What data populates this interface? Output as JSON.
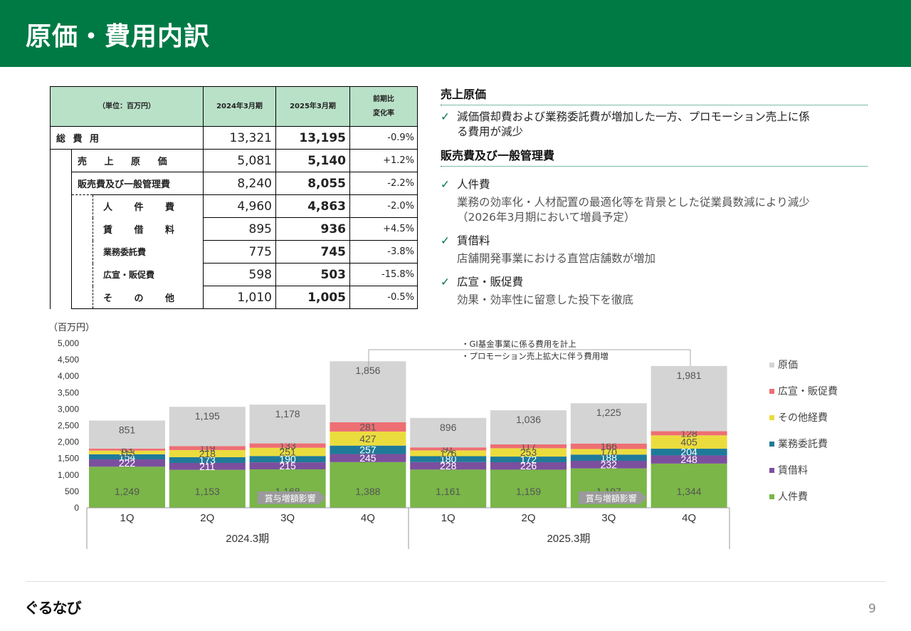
{
  "header": {
    "title": "原価・費用内訳"
  },
  "table": {
    "headers": {
      "unit": "（単位：百万円）",
      "fy2024": "2024年3月期",
      "fy2025": "2025年3月期",
      "change_l1": "前期比",
      "change_l2": "変化率"
    },
    "rows": [
      {
        "label": "総 費 用",
        "fy2024": "13,321",
        "fy2025": "13,195",
        "change": "-0.9%"
      },
      {
        "label": "売 上 原 価",
        "fy2024": "5,081",
        "fy2025": "5,140",
        "change": "+1.2%"
      },
      {
        "label": "販売費及び一般管理費",
        "fy2024": "8,240",
        "fy2025": "8,055",
        "change": "-2.2%"
      },
      {
        "label": "人 件 費",
        "fy2024": "4,960",
        "fy2025": "4,863",
        "change": "-2.0%"
      },
      {
        "label": "賃 借 料",
        "fy2024": "895",
        "fy2025": "936",
        "change": "+4.5%"
      },
      {
        "label": "業務委託費",
        "fy2024": "775",
        "fy2025": "745",
        "change": "-3.8%"
      },
      {
        "label": "広宣・販促費",
        "fy2024": "598",
        "fy2025": "503",
        "change": "-15.8%"
      },
      {
        "label": "そ の 他",
        "fy2024": "1,010",
        "fy2025": "1,005",
        "change": "-0.5%"
      }
    ]
  },
  "notes": {
    "section1_title": "売上原価",
    "section1_check": "✓",
    "section1_line1": "減価償却費および業務委託費が増加した一方、プロモーション売上に係",
    "section1_line2": "る費用が減少",
    "section2_title": "販売費及び一般管理費",
    "item1_title": "人件費",
    "item1_line1": "業務の効率化・人材配置の最適化等を背景とした従業員数減により減少",
    "item1_line2": "（2026年3月期において増員予定）",
    "item2_title": "賃借料",
    "item2_line1": "店舗開発事業における直営店舗数が増加",
    "item3_title": "広宣・販促費",
    "item3_line1": "効果・効率性に留意した投下を徹底"
  },
  "chart_data": {
    "type": "bar",
    "stacked": true,
    "unit_label": "（百万円）",
    "categories": [
      "1Q",
      "2Q",
      "3Q",
      "4Q",
      "1Q",
      "2Q",
      "3Q",
      "4Q"
    ],
    "groups": [
      {
        "label": "2024.3期",
        "start": 0,
        "end": 3
      },
      {
        "label": "2025.3期",
        "start": 4,
        "end": 7
      }
    ],
    "ylim": [
      0,
      5000
    ],
    "yticks": [
      "5,000",
      "4,500",
      "4,000",
      "3,500",
      "3,000",
      "2,500",
      "2,000",
      "1,500",
      "1,000",
      "500",
      "0"
    ],
    "series": [
      {
        "name": "人件費",
        "color": "#7ab648",
        "values": [
          1249,
          1153,
          1168,
          1388,
          1161,
          1159,
          1197,
          1344
        ]
      },
      {
        "name": "賃借料",
        "color": "#7b4f9d",
        "values": [
          222,
          211,
          215,
          245,
          228,
          226,
          232,
          248
        ]
      },
      {
        "name": "業務委託費",
        "color": "#1f7a99",
        "values": [
          154,
          173,
          190,
          257,
          180,
          172,
          188,
          204
        ]
      },
      {
        "name": "その他経費",
        "color": "#ebdc3e",
        "values": [
          113,
          218,
          251,
          427,
          176,
          253,
          170,
          405
        ]
      },
      {
        "name": "広宣・販促費",
        "color": "#ee6f73",
        "values": [
          63,
          119,
          133,
          281,
          91,
          117,
          166,
          128
        ]
      },
      {
        "name": "原価",
        "color": "#d4d4d4",
        "values": [
          851,
          1195,
          1178,
          1856,
          896,
          1036,
          1225,
          1981
        ]
      }
    ],
    "legend_order": [
      "原価",
      "広宣・販促費",
      "その他経費",
      "業務委託費",
      "賃借料",
      "人件費"
    ],
    "annotations": {
      "bonus_label": "賞与増額影響",
      "bonus_bars": [
        2,
        6
      ],
      "callout_line1": "・GI基金事業に係る費用を計上",
      "callout_line2": "・プロモーション売上拡大に伴う費用増"
    }
  },
  "footer": {
    "logo": "ぐるなび",
    "page": "9"
  }
}
